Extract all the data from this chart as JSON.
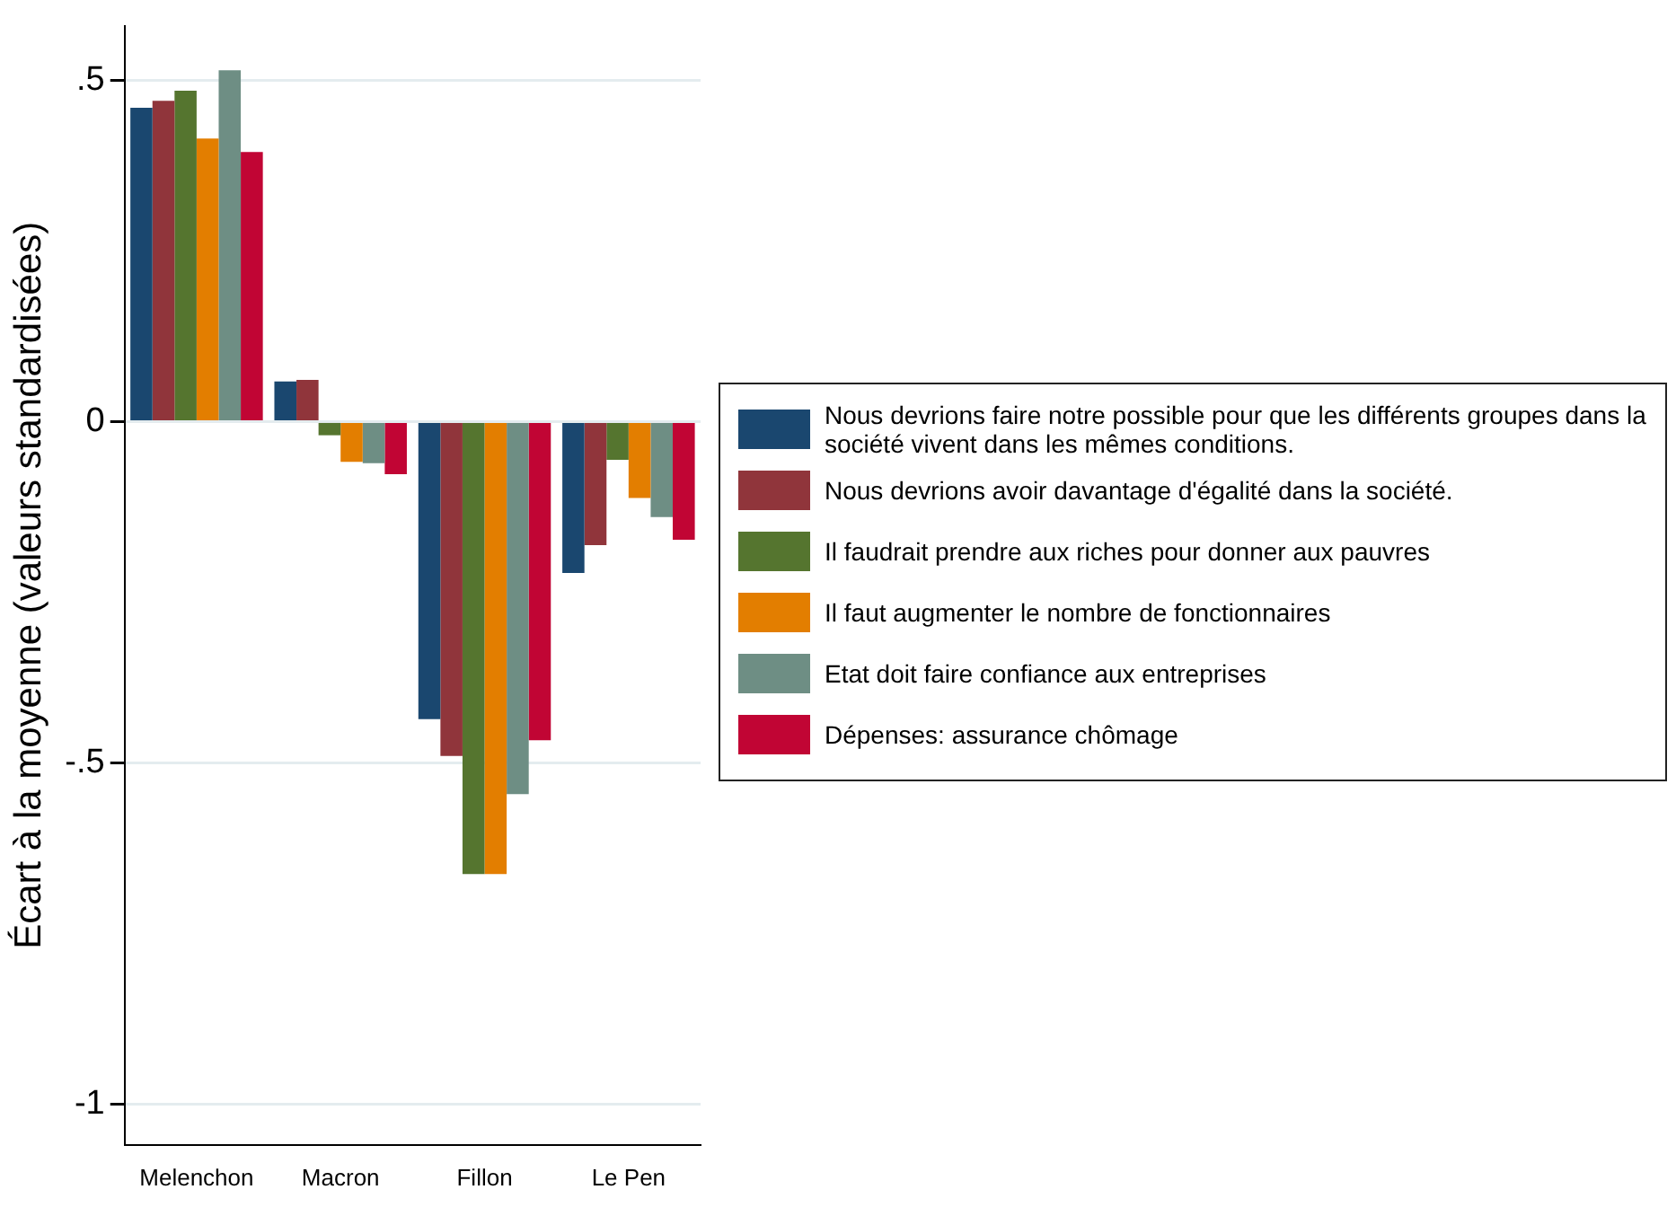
{
  "chart_data": {
    "type": "bar",
    "ylabel": "Écart à la moyenne (valeurs standardisées)",
    "categories": [
      "Melenchon",
      "Macron",
      "Fillon",
      "Le Pen"
    ],
    "series": [
      {
        "name": "Nous devrions faire notre possible pour que les différents groupes dans la société vivent dans les mêmes conditions.",
        "color": "#1a476f",
        "values": [
          0.46,
          0.059,
          -0.436,
          -0.222
        ]
      },
      {
        "name": "Nous devrions avoir davantage d'égalité dans la société.",
        "color": "#90353b",
        "values": [
          0.47,
          0.061,
          -0.49,
          -0.181
        ]
      },
      {
        "name": "Il faudrait prendre aux riches pour donner aux pauvres",
        "color": "#55752f",
        "values": [
          0.485,
          -0.02,
          -0.663,
          -0.056
        ]
      },
      {
        "name": "Il faut augmenter le nombre de fonctionnaires",
        "color": "#e37e00",
        "values": [
          0.415,
          -0.059,
          -0.663,
          -0.112
        ]
      },
      {
        "name": "Etat doit faire confiance aux entreprises",
        "color": "#6e8e84",
        "values": [
          0.515,
          -0.061,
          -0.546,
          -0.14
        ]
      },
      {
        "name": "Dépenses: assurance chômage",
        "color": "#c10534",
        "values": [
          0.395,
          -0.077,
          -0.467,
          -0.173
        ]
      }
    ],
    "ylim": [
      -1.06,
      0.58
    ],
    "yticks": [
      {
        "value": -1,
        "label": "-1"
      },
      {
        "value": -0.5,
        "label": "-.5"
      },
      {
        "value": 0,
        "label": "0"
      },
      {
        "value": 0.5,
        "label": ".5"
      }
    ],
    "grid": "y",
    "legend": "right"
  }
}
